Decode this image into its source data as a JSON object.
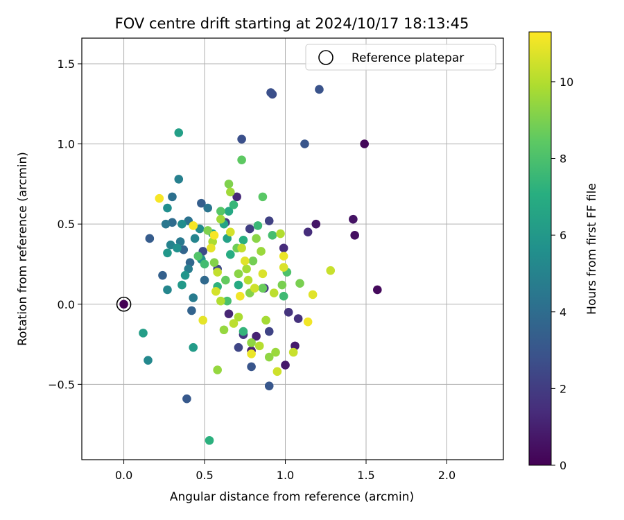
{
  "chart_data": {
    "type": "scatter",
    "title": "FOV centre drift starting at 2024/10/17 18:13:45",
    "xlabel": "Angular distance from reference (arcmin)",
    "ylabel": "Rotation from reference (arcmin)",
    "xlim": [
      -0.26,
      2.35
    ],
    "ylim": [
      -0.97,
      1.66
    ],
    "xticks": [
      0.0,
      0.5,
      1.0,
      1.5,
      2.0
    ],
    "xtick_labels": [
      "0.0",
      "0.5",
      "1.0",
      "1.5",
      "2.0"
    ],
    "yticks": [
      -0.5,
      0.0,
      0.5,
      1.0,
      1.5
    ],
    "ytick_labels": [
      "−0.5",
      "0.0",
      "0.5",
      "1.0",
      "1.5"
    ],
    "grid": true,
    "legend": {
      "position": "top-right",
      "entries": [
        "Reference platepar"
      ]
    },
    "reference_point": {
      "x": 0.0,
      "y": 0.0
    },
    "colorbar": {
      "label": "Hours from first FF file",
      "range": [
        0,
        11.3
      ],
      "ticks": [
        0,
        2,
        4,
        6,
        8,
        10
      ],
      "tick_labels": [
        "0",
        "2",
        "4",
        "6",
        "8",
        "10"
      ],
      "colormap": "viridis"
    },
    "points": [
      {
        "x": 0.0,
        "y": 0.0,
        "h": 0.0
      },
      {
        "x": 1.49,
        "y": 1.0,
        "h": 0.2
      },
      {
        "x": 1.57,
        "y": 0.09,
        "h": 0.3
      },
      {
        "x": 1.43,
        "y": 0.43,
        "h": 0.5
      },
      {
        "x": 1.42,
        "y": 0.53,
        "h": 0.6
      },
      {
        "x": 1.19,
        "y": 0.5,
        "h": 0.7
      },
      {
        "x": 1.0,
        "y": -0.38,
        "h": 0.8
      },
      {
        "x": 1.06,
        "y": -0.26,
        "h": 0.9
      },
      {
        "x": 0.79,
        "y": -0.29,
        "h": 1.0
      },
      {
        "x": 0.82,
        "y": -0.2,
        "h": 1.1
      },
      {
        "x": 0.65,
        "y": -0.06,
        "h": 1.2
      },
      {
        "x": 0.7,
        "y": 0.67,
        "h": 1.3
      },
      {
        "x": 0.99,
        "y": 0.35,
        "h": 1.4
      },
      {
        "x": 1.14,
        "y": 0.45,
        "h": 1.5
      },
      {
        "x": 1.08,
        "y": -0.09,
        "h": 1.6
      },
      {
        "x": 1.02,
        "y": -0.05,
        "h": 1.7
      },
      {
        "x": 0.74,
        "y": -0.19,
        "h": 1.8
      },
      {
        "x": 0.87,
        "y": 0.1,
        "h": 1.9
      },
      {
        "x": 0.63,
        "y": 0.51,
        "h": 2.0
      },
      {
        "x": 0.78,
        "y": 0.47,
        "h": 2.1
      },
      {
        "x": 0.9,
        "y": 0.52,
        "h": 2.2
      },
      {
        "x": 0.9,
        "y": -0.17,
        "h": 2.3
      },
      {
        "x": 0.71,
        "y": -0.27,
        "h": 2.4
      },
      {
        "x": 0.58,
        "y": 0.22,
        "h": 2.5
      },
      {
        "x": 0.49,
        "y": 0.33,
        "h": 2.6
      },
      {
        "x": 0.92,
        "y": 1.31,
        "h": 2.7
      },
      {
        "x": 0.73,
        "y": 1.03,
        "h": 2.8
      },
      {
        "x": 0.91,
        "y": 1.32,
        "h": 2.8
      },
      {
        "x": 1.21,
        "y": 1.34,
        "h": 2.9
      },
      {
        "x": 1.12,
        "y": 1.0,
        "h": 3.0
      },
      {
        "x": 0.79,
        "y": -0.39,
        "h": 3.0
      },
      {
        "x": 0.9,
        "y": -0.51,
        "h": 3.1
      },
      {
        "x": 0.39,
        "y": -0.59,
        "h": 3.2
      },
      {
        "x": 0.16,
        "y": 0.41,
        "h": 3.3
      },
      {
        "x": 0.48,
        "y": 0.63,
        "h": 3.4
      },
      {
        "x": 0.24,
        "y": 0.18,
        "h": 3.5
      },
      {
        "x": 0.42,
        "y": -0.04,
        "h": 3.6
      },
      {
        "x": 0.37,
        "y": 0.34,
        "h": 3.7
      },
      {
        "x": 0.41,
        "y": 0.26,
        "h": 3.8
      },
      {
        "x": 0.5,
        "y": 0.15,
        "h": 3.9
      },
      {
        "x": 0.3,
        "y": 0.51,
        "h": 4.0
      },
      {
        "x": 0.3,
        "y": 0.67,
        "h": 4.2
      },
      {
        "x": 0.4,
        "y": 0.52,
        "h": 4.3
      },
      {
        "x": 0.52,
        "y": 0.6,
        "h": 4.4
      },
      {
        "x": 0.26,
        "y": 0.5,
        "h": 4.5
      },
      {
        "x": 0.35,
        "y": 0.39,
        "h": 4.6
      },
      {
        "x": 0.43,
        "y": 0.04,
        "h": 4.7
      },
      {
        "x": 0.4,
        "y": 0.22,
        "h": 4.8
      },
      {
        "x": 0.34,
        "y": 0.78,
        "h": 4.9
      },
      {
        "x": 0.29,
        "y": 0.37,
        "h": 5.0
      },
      {
        "x": 0.44,
        "y": 0.41,
        "h": 5.1
      },
      {
        "x": 0.27,
        "y": 0.09,
        "h": 5.2
      },
      {
        "x": 0.15,
        "y": -0.35,
        "h": 5.3
      },
      {
        "x": 0.47,
        "y": 0.47,
        "h": 5.4
      },
      {
        "x": 0.36,
        "y": 0.5,
        "h": 5.5
      },
      {
        "x": 0.27,
        "y": 0.6,
        "h": 5.6
      },
      {
        "x": 0.33,
        "y": 0.35,
        "h": 5.7
      },
      {
        "x": 0.48,
        "y": 0.28,
        "h": 5.8
      },
      {
        "x": 0.38,
        "y": 0.18,
        "h": 5.9
      },
      {
        "x": 0.27,
        "y": 0.32,
        "h": 6.0
      },
      {
        "x": 0.36,
        "y": 0.12,
        "h": 6.1
      },
      {
        "x": 0.43,
        "y": -0.27,
        "h": 6.2
      },
      {
        "x": 0.12,
        "y": -0.18,
        "h": 6.3
      },
      {
        "x": 0.34,
        "y": 1.07,
        "h": 6.4
      },
      {
        "x": 0.64,
        "y": 0.41,
        "h": 6.5
      },
      {
        "x": 0.62,
        "y": 0.5,
        "h": 6.6
      },
      {
        "x": 0.55,
        "y": 0.44,
        "h": 6.7
      },
      {
        "x": 0.65,
        "y": 0.58,
        "h": 6.8
      },
      {
        "x": 0.71,
        "y": 0.12,
        "h": 6.9
      },
      {
        "x": 0.66,
        "y": 0.31,
        "h": 7.0
      },
      {
        "x": 0.74,
        "y": 0.4,
        "h": 7.1
      },
      {
        "x": 0.53,
        "y": -0.85,
        "h": 7.2
      },
      {
        "x": 0.58,
        "y": 0.11,
        "h": 7.3
      },
      {
        "x": 0.74,
        "y": -0.17,
        "h": 7.4
      },
      {
        "x": 0.68,
        "y": 0.62,
        "h": 7.5
      },
      {
        "x": 0.83,
        "y": 0.49,
        "h": 7.6
      },
      {
        "x": 0.99,
        "y": 0.05,
        "h": 7.7
      },
      {
        "x": 0.5,
        "y": 0.25,
        "h": 7.8
      },
      {
        "x": 0.92,
        "y": 0.43,
        "h": 7.9
      },
      {
        "x": 0.64,
        "y": 0.02,
        "h": 8.0
      },
      {
        "x": 1.01,
        "y": 0.2,
        "h": 8.1
      },
      {
        "x": 0.46,
        "y": 0.3,
        "h": 8.2
      },
      {
        "x": 0.6,
        "y": 0.58,
        "h": 8.3
      },
      {
        "x": 0.86,
        "y": 0.67,
        "h": 8.4
      },
      {
        "x": 0.73,
        "y": 0.9,
        "h": 8.5
      },
      {
        "x": 0.63,
        "y": 0.15,
        "h": 8.6
      },
      {
        "x": 0.86,
        "y": 0.1,
        "h": 8.7
      },
      {
        "x": 0.7,
        "y": 0.35,
        "h": 8.8
      },
      {
        "x": 0.8,
        "y": 0.27,
        "h": 8.9
      },
      {
        "x": 0.98,
        "y": 0.12,
        "h": 9.0
      },
      {
        "x": 1.09,
        "y": 0.13,
        "h": 9.0
      },
      {
        "x": 0.65,
        "y": 0.75,
        "h": 9.1
      },
      {
        "x": 0.52,
        "y": 0.46,
        "h": 9.1
      },
      {
        "x": 0.78,
        "y": 0.07,
        "h": 9.2
      },
      {
        "x": 0.56,
        "y": 0.26,
        "h": 9.2
      },
      {
        "x": 0.71,
        "y": 0.19,
        "h": 9.3
      },
      {
        "x": 0.82,
        "y": 0.41,
        "h": 9.3
      },
      {
        "x": 0.9,
        "y": -0.33,
        "h": 9.4
      },
      {
        "x": 0.79,
        "y": -0.24,
        "h": 9.4
      },
      {
        "x": 0.58,
        "y": -0.41,
        "h": 9.5
      },
      {
        "x": 0.62,
        "y": -0.16,
        "h": 9.5
      },
      {
        "x": 0.94,
        "y": -0.3,
        "h": 9.6
      },
      {
        "x": 0.85,
        "y": 0.33,
        "h": 9.6
      },
      {
        "x": 0.66,
        "y": 0.7,
        "h": 9.7
      },
      {
        "x": 0.6,
        "y": 0.53,
        "h": 9.7
      },
      {
        "x": 0.76,
        "y": 0.22,
        "h": 9.8
      },
      {
        "x": 0.88,
        "y": -0.1,
        "h": 9.8
      },
      {
        "x": 0.71,
        "y": -0.08,
        "h": 9.9
      },
      {
        "x": 0.55,
        "y": 0.39,
        "h": 9.9
      },
      {
        "x": 0.97,
        "y": 0.44,
        "h": 10.0
      },
      {
        "x": 0.6,
        "y": 0.02,
        "h": 10.0
      },
      {
        "x": 0.84,
        "y": -0.26,
        "h": 10.1
      },
      {
        "x": 0.77,
        "y": 0.15,
        "h": 10.1
      },
      {
        "x": 0.68,
        "y": -0.12,
        "h": 10.2
      },
      {
        "x": 0.93,
        "y": 0.07,
        "h": 10.2
      },
      {
        "x": 0.73,
        "y": 0.35,
        "h": 10.3
      },
      {
        "x": 0.58,
        "y": 0.2,
        "h": 10.3
      },
      {
        "x": 1.28,
        "y": 0.21,
        "h": 10.4
      },
      {
        "x": 1.05,
        "y": -0.3,
        "h": 10.4
      },
      {
        "x": 0.95,
        "y": -0.42,
        "h": 10.5
      },
      {
        "x": 0.81,
        "y": 0.1,
        "h": 10.5
      },
      {
        "x": 0.66,
        "y": 0.45,
        "h": 10.6
      },
      {
        "x": 0.57,
        "y": 0.08,
        "h": 10.6
      },
      {
        "x": 0.86,
        "y": 0.19,
        "h": 10.7
      },
      {
        "x": 0.99,
        "y": 0.23,
        "h": 10.7
      },
      {
        "x": 1.17,
        "y": 0.06,
        "h": 10.8
      },
      {
        "x": 0.75,
        "y": 0.27,
        "h": 10.8
      },
      {
        "x": 0.54,
        "y": 0.35,
        "h": 10.9
      },
      {
        "x": 0.49,
        "y": -0.1,
        "h": 10.9
      },
      {
        "x": 0.79,
        "y": -0.31,
        "h": 11.0
      },
      {
        "x": 0.99,
        "y": 0.3,
        "h": 11.0
      },
      {
        "x": 1.14,
        "y": -0.11,
        "h": 11.1
      },
      {
        "x": 0.72,
        "y": 0.05,
        "h": 11.1
      },
      {
        "x": 0.43,
        "y": 0.49,
        "h": 11.2
      },
      {
        "x": 0.22,
        "y": 0.66,
        "h": 11.2
      },
      {
        "x": 0.56,
        "y": 0.43,
        "h": 11.2
      }
    ]
  }
}
